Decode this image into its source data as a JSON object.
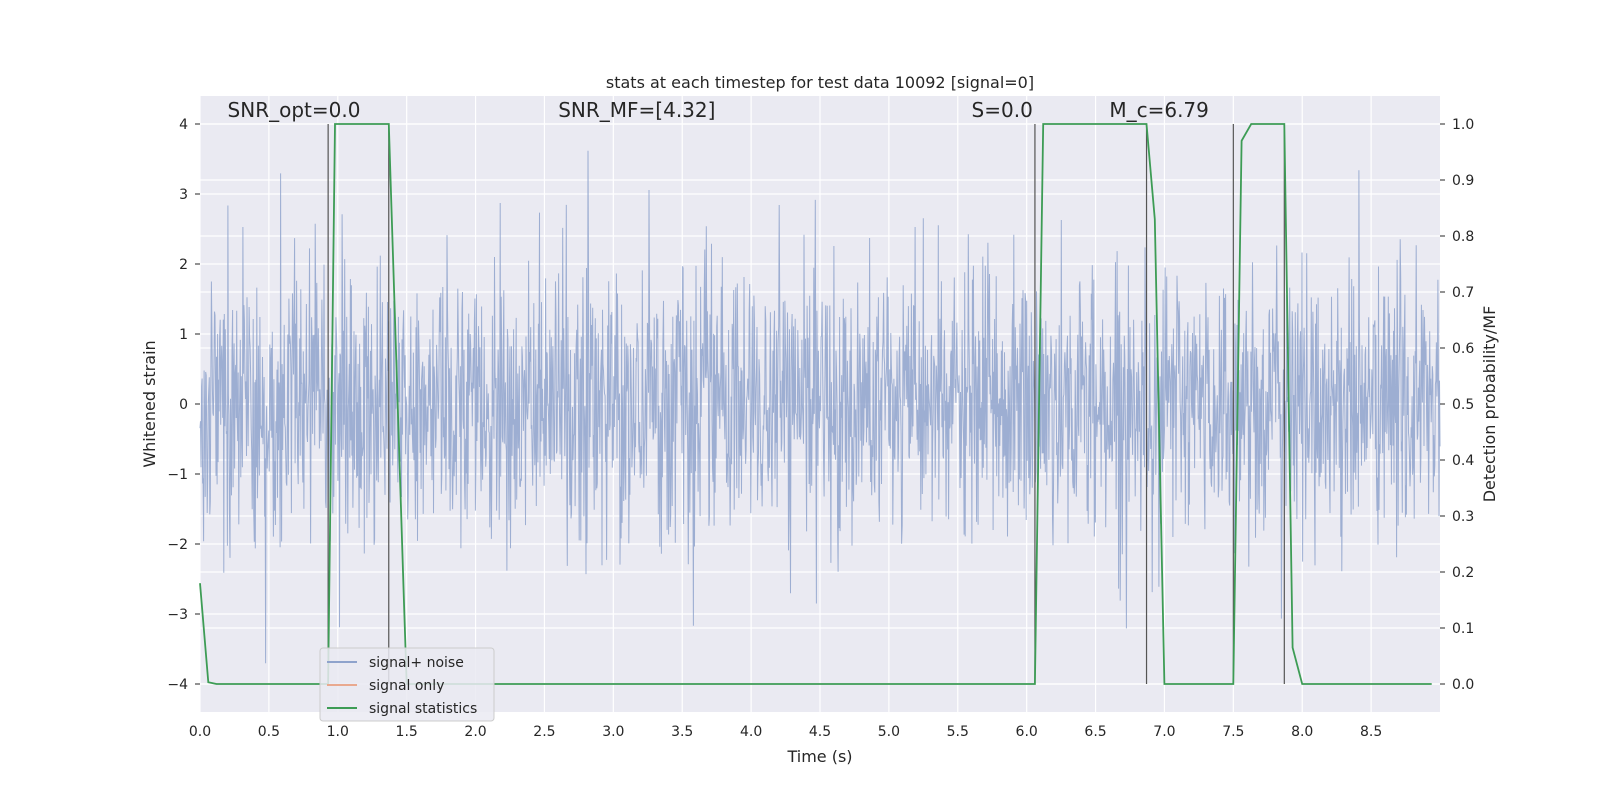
{
  "chart_data": {
    "type": "line",
    "title": "stats at each timestep for test data 10092 [signal=0]",
    "xlabel": "Time (s)",
    "ylabel": "Whitened strain",
    "y2label": "Detection probability/MF",
    "xlim": [
      0.0,
      9.0
    ],
    "ylim": [
      -4.4,
      4.4
    ],
    "y2lim": [
      -0.05,
      1.05
    ],
    "xticks": [
      "0.0",
      "0.5",
      "1.0",
      "1.5",
      "2.0",
      "2.5",
      "3.0",
      "3.5",
      "4.0",
      "4.5",
      "5.0",
      "5.5",
      "6.0",
      "6.5",
      "7.0",
      "7.5",
      "8.0",
      "8.5"
    ],
    "yticks": [
      "−4",
      "−3",
      "−2",
      "−1",
      "0",
      "1",
      "2",
      "3",
      "4"
    ],
    "y2ticks": [
      "0.0",
      "0.1",
      "0.2",
      "0.3",
      "0.4",
      "0.5",
      "0.6",
      "0.7",
      "0.8",
      "0.9",
      "1.0"
    ],
    "annotations": [
      {
        "text": "SNR_opt=0.0",
        "x": 0.2,
        "y": 4.1
      },
      {
        "text": "SNR_MF=[4.32]",
        "x": 2.6,
        "y": 4.1
      },
      {
        "text": "S=0.0",
        "x": 5.6,
        "y": 4.1
      },
      {
        "text": "M_c=6.79",
        "x": 6.6,
        "y": 4.1
      }
    ],
    "legend": {
      "placement": "lower-left",
      "entries": [
        {
          "name": "signal+ noise",
          "color": "#8fa3cc"
        },
        {
          "name": "signal only",
          "color": "#e9a98f"
        },
        {
          "name": "signal statistics",
          "color": "#3d9c55"
        }
      ]
    },
    "grid": true,
    "series": [
      {
        "name": "signal statistics",
        "axis": "right",
        "color": "#3d9c55",
        "x": [
          0.0,
          0.06,
          0.12,
          0.93,
          0.98,
          1.37,
          1.48,
          1.5,
          6.06,
          6.12,
          6.87,
          6.93,
          7.0,
          7.06,
          7.5,
          7.56,
          7.63,
          7.87,
          7.93,
          8.0,
          8.94
        ],
        "y": [
          0.18,
          0.003,
          0.0,
          0.0,
          1.0,
          1.0,
          0.15,
          0.0,
          0.0,
          1.0,
          1.0,
          0.83,
          0.0,
          0.0,
          0.0,
          0.97,
          1.0,
          1.0,
          0.065,
          0.0,
          0.0
        ]
      }
    ],
    "markers": [
      {
        "x": 0.93,
        "y0": -4.0,
        "y1": 4.0
      },
      {
        "x": 1.37,
        "y0": -4.0,
        "y1": 4.0
      },
      {
        "x": 6.06,
        "y0": -4.0,
        "y1": 4.0
      },
      {
        "x": 6.87,
        "y0": -4.0,
        "y1": 4.0
      },
      {
        "x": 7.5,
        "y0": -4.0,
        "y1": 4.0
      },
      {
        "x": 7.87,
        "y0": -4.0,
        "y1": 4.0
      }
    ],
    "noise": {
      "name": "signal+ noise",
      "color": "#8fa3cc",
      "x_range": [
        0.0,
        9.0
      ],
      "amplitude_sd": 0.95,
      "y_range_visible": [
        -4.0,
        4.0
      ]
    }
  }
}
